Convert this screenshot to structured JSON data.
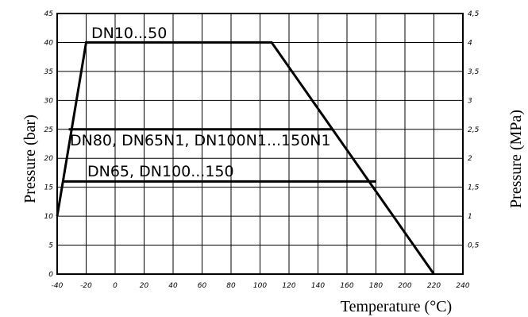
{
  "chart_data": {
    "type": "line",
    "title": "",
    "xlabel": "Temperature (°C)",
    "ylabel": "Pressure (bar)",
    "y2label": "Pressure (MPa)",
    "xlim": [
      -40,
      240
    ],
    "ylim": [
      0,
      45
    ],
    "y2lim": [
      0,
      4.5
    ],
    "grid": true,
    "x_ticks": [
      "-40",
      "-20",
      "0",
      "20",
      "40",
      "60",
      "80",
      "100",
      "120",
      "140",
      "160",
      "180",
      "200",
      "220",
      "240"
    ],
    "y_ticks": [
      "0",
      "5",
      "10",
      "15",
      "20",
      "25",
      "30",
      "35",
      "40",
      "45"
    ],
    "y2_ticks": [
      "0,5",
      "1",
      "1,5",
      "2",
      "2,5",
      "3",
      "3,5",
      "4",
      "4,5"
    ],
    "series": [
      {
        "name": "DN10...50",
        "x": [
          -40,
          -20,
          108,
          220
        ],
        "y": [
          10,
          40,
          40,
          0
        ]
      },
      {
        "name": "DN80, DN65N1, DN100N1...150N1",
        "x": [
          -32,
          150
        ],
        "y": [
          25,
          25
        ]
      },
      {
        "name": "DN65, DN100...150",
        "x": [
          -36,
          180
        ],
        "y": [
          16,
          16
        ]
      }
    ]
  }
}
